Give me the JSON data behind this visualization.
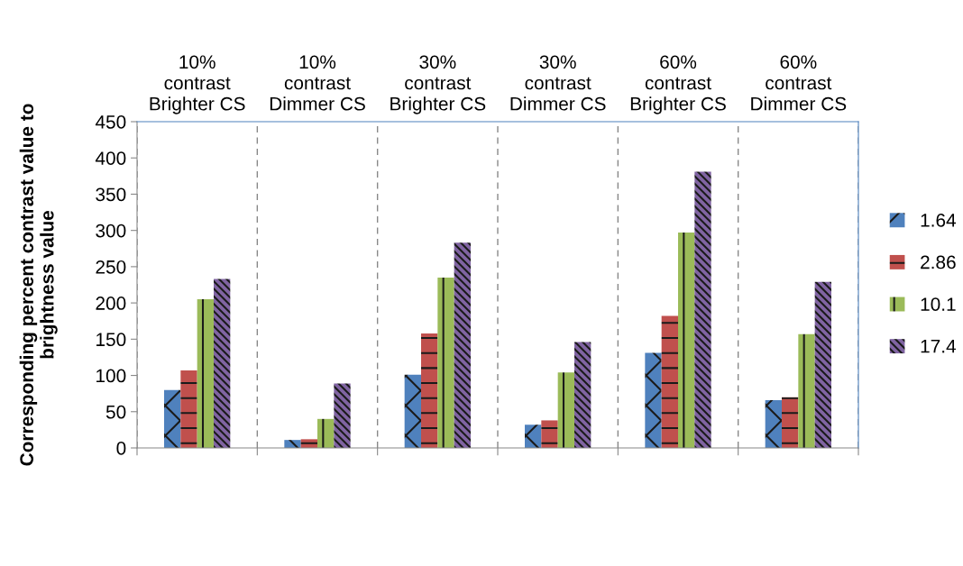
{
  "chart_data": {
    "type": "bar",
    "ylabel": "Corresponding percent contrast value to\nbrightness value",
    "categories": [
      "10%\ncontrast\nBrighter CS",
      "10%\ncontrast\nDimmer CS",
      "30%\ncontrast\nBrighter CS",
      "30%\ncontrast\nDimmer CS",
      "60%\ncontrast\nBrighter CS",
      "60%\ncontrast\nDimmer CS"
    ],
    "series": [
      {
        "name": "1.64",
        "color": "#4f81bd",
        "values": [
          80,
          11,
          101,
          32,
          131,
          66
        ]
      },
      {
        "name": "2.86",
        "color": "#c0504d",
        "values": [
          107,
          12,
          158,
          38,
          182,
          70
        ]
      },
      {
        "name": "10.1",
        "color": "#9bbb59",
        "values": [
          205,
          40,
          235,
          104,
          297,
          157
        ]
      },
      {
        "name": "17.4",
        "color": "#8064a2",
        "values": [
          233,
          89,
          283,
          146,
          381,
          229
        ]
      }
    ],
    "ylim": [
      0,
      450
    ],
    "yticks": [
      0,
      50,
      100,
      150,
      200,
      250,
      300,
      350,
      400,
      450
    ],
    "grid": "x",
    "legend": "right"
  }
}
